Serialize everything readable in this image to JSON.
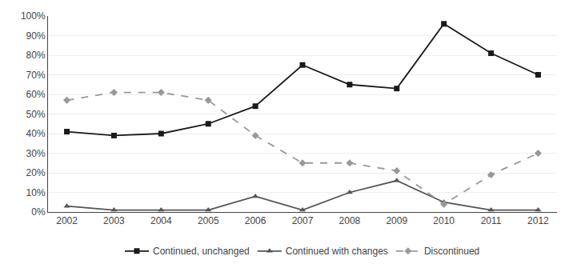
{
  "chart_data": {
    "type": "line",
    "x": [
      2002,
      2003,
      2004,
      2005,
      2006,
      2007,
      2008,
      2009,
      2010,
      2011,
      2012
    ],
    "xlim": [
      2001.6,
      2012.4
    ],
    "xticks": [
      2002,
      2003,
      2004,
      2005,
      2006,
      2007,
      2008,
      2009,
      2010,
      2011,
      2012
    ],
    "ylim": [
      0,
      100
    ],
    "yticks": [
      {
        "value": 0,
        "label": "0%"
      },
      {
        "value": 10,
        "label": "10%"
      },
      {
        "value": 20,
        "label": "20%"
      },
      {
        "value": 30,
        "label": "30%"
      },
      {
        "value": 40,
        "label": "40%"
      },
      {
        "value": 50,
        "label": "50%"
      },
      {
        "value": 60,
        "label": "60%"
      },
      {
        "value": 70,
        "label": "70%"
      },
      {
        "value": 80,
        "label": "80%"
      },
      {
        "value": 90,
        "label": "90%"
      },
      {
        "value": 100,
        "label": "100%"
      }
    ],
    "grid": "y",
    "legend": "bottom",
    "series": [
      {
        "name": "Continued, unchanged",
        "color": "#1a1a1a",
        "marker": "square",
        "line_style": "solid",
        "values": [
          41,
          39,
          40,
          45,
          54,
          75,
          65,
          63,
          96,
          81,
          70
        ]
      },
      {
        "name": "Continued with changes",
        "color": "#555555",
        "marker": "triangle-up",
        "line_style": "solid",
        "values": [
          3,
          1,
          1,
          1,
          8,
          1,
          10,
          16,
          5,
          1,
          1
        ]
      },
      {
        "name": "Discontinued",
        "color": "#999999",
        "marker": "diamond",
        "line_style": "dash",
        "values": [
          57,
          61,
          61,
          57,
          39,
          25,
          25,
          21,
          4,
          19,
          30
        ]
      }
    ]
  }
}
